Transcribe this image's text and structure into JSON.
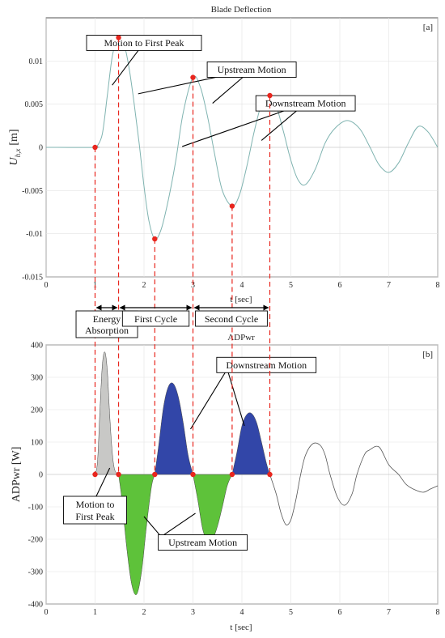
{
  "chart_data": [
    {
      "type": "line",
      "panel_label": "[a]",
      "title": "Blade Deflection",
      "xlabel": "t  [sec]",
      "ylabel_main": "U",
      "ylabel_sub": "h,x",
      "ylabel_unit": "[m]",
      "xlim": [
        0,
        8
      ],
      "ylim": [
        -0.015,
        0.015
      ],
      "x_ticks": [
        "0",
        "1",
        "2",
        "3",
        "4",
        "5",
        "6",
        "7",
        "8"
      ],
      "y_ticks": [
        "0.01",
        "0.005",
        "0",
        "-0.005",
        "-0.01",
        "-0.015"
      ],
      "y_tick_values": [
        0.01,
        0.005,
        0,
        -0.005,
        -0.01,
        -0.015
      ],
      "grid": true,
      "series_color": "#7fb3b0",
      "line_x": [
        0,
        1.0,
        1.05,
        1.15,
        1.25,
        1.35,
        1.45,
        1.5,
        1.6,
        1.7,
        1.8,
        1.9,
        2.0,
        2.1,
        2.22,
        2.35,
        2.5,
        2.65,
        2.8,
        3.0,
        3.15,
        3.3,
        3.45,
        3.6,
        3.8,
        3.95,
        4.1,
        4.25,
        4.4,
        4.55,
        4.7,
        4.85,
        5.0,
        5.15,
        5.3,
        5.5,
        5.7,
        5.9,
        6.15,
        6.4,
        6.6,
        6.8,
        7.0,
        7.2,
        7.4,
        7.6,
        7.8,
        8.0
      ],
      "line_y": [
        0,
        0,
        0.0002,
        0.0016,
        0.006,
        0.0105,
        0.0125,
        0.0127,
        0.0118,
        0.009,
        0.005,
        0.0005,
        -0.0045,
        -0.0085,
        -0.0106,
        -0.0095,
        -0.006,
        -0.0015,
        0.004,
        0.0081,
        0.007,
        0.0035,
        -0.001,
        -0.005,
        -0.0068,
        -0.0055,
        -0.0022,
        0.0018,
        0.005,
        0.006,
        0.0048,
        0.0018,
        -0.0015,
        -0.0038,
        -0.0043,
        -0.0025,
        0.0005,
        0.0022,
        0.0031,
        0.0022,
        0.0002,
        -0.002,
        -0.0029,
        -0.0018,
        0.0005,
        0.0024,
        0.0018,
        0.0
      ],
      "markers": [
        {
          "x": 1.0,
          "y": 0.0
        },
        {
          "x": 1.48,
          "y": 0.0127
        },
        {
          "x": 2.22,
          "y": -0.0106
        },
        {
          "x": 3.0,
          "y": 0.0081
        },
        {
          "x": 3.8,
          "y": -0.0068
        },
        {
          "x": 4.57,
          "y": 0.006
        }
      ],
      "annotations": [
        {
          "text": "Motion to First Peak",
          "box_x": 2.0,
          "box_y": 0.0121
        },
        {
          "text": "Upstream Motion",
          "box_x": 4.2,
          "box_y": 0.009
        },
        {
          "text": "Downstream Motion",
          "box_x": 5.3,
          "box_y": 0.0051
        }
      ],
      "annotation_leaders": [
        {
          "from_x": 2.0,
          "from_y": 0.0121,
          "to_x": 1.35,
          "to_y": 0.0072
        },
        {
          "from_x": 4.2,
          "from_y": 0.009,
          "to_x": 1.88,
          "to_y": 0.0062
        },
        {
          "from_x": 4.2,
          "from_y": 0.009,
          "to_x": 3.4,
          "to_y": 0.0051
        },
        {
          "from_x": 5.3,
          "from_y": 0.0051,
          "to_x": 2.78,
          "to_y": 0.0001
        },
        {
          "from_x": 5.3,
          "from_y": 0.0051,
          "to_x": 4.4,
          "to_y": 0.0008
        }
      ]
    },
    {
      "type": "area",
      "panel_label": "[b]",
      "title": "ADPwr",
      "xlabel": "t  [sec]",
      "ylabel": "ADPwr  [W]",
      "xlim": [
        0,
        8
      ],
      "ylim": [
        -400,
        400
      ],
      "x_ticks": [
        "0",
        "1",
        "2",
        "3",
        "4",
        "5",
        "6",
        "7",
        "8"
      ],
      "y_ticks": [
        "400",
        "300",
        "200",
        "100",
        "0",
        "-100",
        "-200",
        "-300",
        "-400"
      ],
      "y_tick_values": [
        400,
        300,
        200,
        100,
        0,
        -100,
        -200,
        -300,
        -400
      ],
      "grid": true,
      "colors": {
        "energy": "#c8c8c6",
        "downstream": "#3246a8",
        "upstream": "#5ec23a",
        "line": "#555555"
      },
      "filled_regions": [
        {
          "kind": "energy",
          "x": [
            1.0,
            1.05,
            1.1,
            1.15,
            1.2,
            1.25,
            1.3,
            1.35,
            1.4,
            1.48
          ],
          "y": [
            0,
            40,
            200,
            340,
            378,
            320,
            180,
            70,
            15,
            0
          ]
        },
        {
          "kind": "upstream",
          "x": [
            1.48,
            1.55,
            1.65,
            1.75,
            1.85,
            1.95,
            2.05,
            2.15,
            2.22
          ],
          "y": [
            0,
            -80,
            -230,
            -340,
            -370,
            -300,
            -160,
            -40,
            0
          ]
        },
        {
          "kind": "downstream",
          "x": [
            2.22,
            2.3,
            2.4,
            2.5,
            2.6,
            2.7,
            2.8,
            2.9,
            3.0
          ],
          "y": [
            0,
            90,
            210,
            272,
            280,
            240,
            160,
            60,
            0
          ]
        },
        {
          "kind": "upstream",
          "x": [
            3.0,
            3.1,
            3.2,
            3.3,
            3.4,
            3.5,
            3.6,
            3.7,
            3.8
          ],
          "y": [
            0,
            -80,
            -170,
            -205,
            -200,
            -160,
            -100,
            -35,
            0
          ]
        },
        {
          "kind": "downstream",
          "x": [
            3.8,
            3.9,
            4.0,
            4.1,
            4.2,
            4.3,
            4.4,
            4.5,
            4.57
          ],
          "y": [
            0,
            70,
            150,
            185,
            188,
            160,
            100,
            35,
            0
          ]
        }
      ],
      "tail_line_x": [
        4.57,
        4.7,
        4.8,
        4.9,
        5.0,
        5.1,
        5.2,
        5.3,
        5.45,
        5.6,
        5.7,
        5.8,
        5.95,
        6.1,
        6.25,
        6.35,
        6.5,
        6.6,
        6.8,
        7.0,
        7.2,
        7.35,
        7.5,
        7.7,
        7.85,
        8.0
      ],
      "tail_line_y": [
        0,
        -60,
        -120,
        -155,
        -140,
        -80,
        0,
        60,
        95,
        90,
        60,
        0,
        -70,
        -95,
        -60,
        0,
        60,
        75,
        85,
        30,
        0,
        -30,
        -45,
        -55,
        -45,
        -35
      ],
      "markers": [
        {
          "x": 1.0,
          "y": 0
        },
        {
          "x": 1.48,
          "y": 0
        },
        {
          "x": 2.22,
          "y": 0
        },
        {
          "x": 3.0,
          "y": 0
        },
        {
          "x": 3.8,
          "y": 0
        },
        {
          "x": 4.57,
          "y": 0
        }
      ],
      "annotations": [
        {
          "text": "Downstream Motion",
          "box_x": 4.5,
          "box_y": 338
        },
        {
          "text": "Upstream Motion",
          "box_x": 3.2,
          "box_y": -210
        },
        {
          "text": "Motion to",
          "text2": "First Peak",
          "box_x": 1.0,
          "box_y": -110
        }
      ],
      "annotation_leaders": [
        {
          "from_x": 3.7,
          "from_y": 325,
          "to_x": 2.95,
          "to_y": 140
        },
        {
          "from_x": 3.7,
          "from_y": 325,
          "to_x": 4.05,
          "to_y": 150
        },
        {
          "from_x": 2.35,
          "from_y": -192,
          "to_x": 2.0,
          "to_y": -130
        },
        {
          "from_x": 2.35,
          "from_y": -192,
          "to_x": 3.05,
          "to_y": -120
        },
        {
          "from_x": 1.0,
          "from_y": -75,
          "to_x": 1.3,
          "to_y": 20
        }
      ]
    }
  ],
  "phase_labels": [
    {
      "text": "Energy",
      "text2": "Absorption",
      "from_x": 1.0,
      "to_x": 1.48
    },
    {
      "text": "First Cycle",
      "from_x": 1.48,
      "to_x": 3.0
    },
    {
      "text": "Second Cycle",
      "from_x": 3.0,
      "to_x": 4.57
    }
  ]
}
